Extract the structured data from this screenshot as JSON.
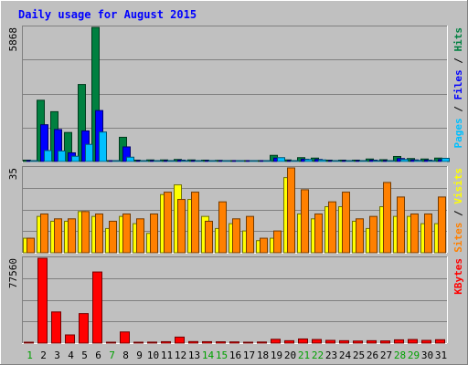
{
  "chart_data": {
    "type": "bar",
    "title": "Daily usage for August 2015",
    "days": [
      "1",
      "2",
      "3",
      "4",
      "5",
      "6",
      "7",
      "8",
      "9",
      "10",
      "11",
      "12",
      "13",
      "14",
      "15",
      "16",
      "17",
      "18",
      "19",
      "20",
      "21",
      "22",
      "23",
      "24",
      "25",
      "26",
      "27",
      "28",
      "29",
      "30",
      "31"
    ],
    "weekend_days": [
      1,
      7,
      14,
      15,
      21,
      22,
      28,
      29
    ],
    "panels": [
      {
        "id": "top",
        "ymax_label": "5868",
        "ymax": 5868,
        "right_label": [
          {
            "text": "Pages",
            "color": "#00C0FF"
          },
          {
            "text": " / ",
            "color": "#000000"
          },
          {
            "text": "Files",
            "color": "#0000FF"
          },
          {
            "text": " / ",
            "color": "#000000"
          },
          {
            "text": "Hits",
            "color": "#008040"
          }
        ],
        "series": [
          {
            "name": "Hits",
            "color": "#008040",
            "values": [
              60,
              2680,
              2180,
              1270,
              3370,
              5868,
              40,
              1060,
              60,
              70,
              70,
              90,
              70,
              60,
              50,
              40,
              40,
              40,
              270,
              70,
              170,
              150,
              60,
              60,
              60,
              110,
              80,
              220,
              130,
              110,
              150
            ]
          },
          {
            "name": "Files",
            "color": "#0000FF",
            "values": [
              30,
              1610,
              1400,
              380,
              1340,
              2230,
              20,
              640,
              30,
              40,
              40,
              60,
              40,
              30,
              30,
              20,
              20,
              20,
              150,
              40,
              100,
              90,
              30,
              30,
              30,
              60,
              40,
              130,
              70,
              60,
              80
            ]
          },
          {
            "name": "Pages",
            "color": "#00C0FF",
            "values": [
              20,
              480,
              460,
              230,
              750,
              1290,
              20,
              190,
              20,
              20,
              20,
              30,
              20,
              20,
              10,
              10,
              10,
              10,
              170,
              30,
              90,
              70,
              20,
              20,
              20,
              40,
              30,
              90,
              50,
              40,
              140
            ]
          }
        ]
      },
      {
        "id": "middle",
        "ymax_label": "35",
        "ymax": 35,
        "right_label": [
          {
            "text": "Sites",
            "color": "#FF8000"
          },
          {
            "text": " / ",
            "color": "#000000"
          },
          {
            "text": "Visits",
            "color": "#FFFF00"
          }
        ],
        "series": [
          {
            "name": "Visits",
            "color": "#FFFF00",
            "values": [
              6,
              15,
              13,
              13,
              17,
              15,
              10,
              15,
              12,
              8,
              24,
              28,
              22,
              15,
              10,
              12,
              9,
              5,
              6,
              31,
              16,
              14,
              19,
              19,
              13,
              10,
              19,
              15,
              15,
              12,
              12
            ]
          },
          {
            "name": "Sites",
            "color": "#FF8000",
            "values": [
              6,
              16,
              14,
              14,
              17,
              16,
              13,
              16,
              14,
              16,
              25,
              22,
              25,
              13,
              21,
              14,
              15,
              6,
              9,
              35,
              26,
              16,
              21,
              25,
              14,
              15,
              29,
              23,
              16,
              16,
              23
            ]
          }
        ]
      },
      {
        "id": "bottom",
        "ymax_label": "77560",
        "ymax": 77560,
        "right_label": [
          {
            "text": "KBytes",
            "color": "#FF0000"
          }
        ],
        "series": [
          {
            "name": "KBytes",
            "color": "#FF0000",
            "values": [
              400,
              77560,
              28500,
              7500,
              27000,
              65000,
              400,
              10200,
              800,
              900,
              1300,
              5500,
              1400,
              1300,
              1200,
              1100,
              800,
              1000,
              3500,
              2200,
              3800,
              3300,
              2500,
              2200,
              1900,
              2200,
              2000,
              3000,
              3300,
              2500,
              3100
            ]
          }
        ]
      }
    ]
  }
}
